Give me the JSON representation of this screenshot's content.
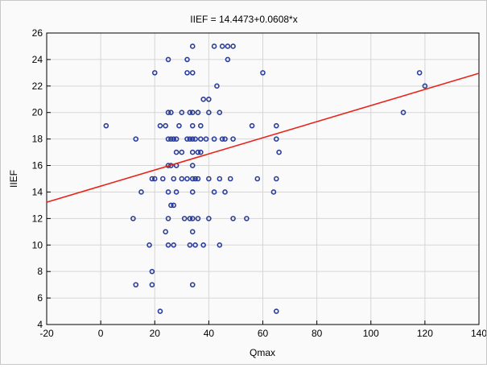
{
  "chart_data": {
    "type": "scatter",
    "title": "IIEF = 14.4473+0.0608*x",
    "xlabel": "Qmax",
    "ylabel": "IIEF",
    "xlim": [
      -20,
      140
    ],
    "ylim": [
      4,
      26
    ],
    "xticks": [
      -20,
      0,
      20,
      40,
      60,
      80,
      100,
      120,
      140
    ],
    "yticks": [
      4,
      6,
      8,
      10,
      12,
      14,
      16,
      18,
      20,
      22,
      24,
      26
    ],
    "grid": true,
    "colors": {
      "points": "#2b3d9a",
      "line": "#e8241a",
      "grid": "#d6d6d6"
    },
    "regression": {
      "intercept": 14.4473,
      "slope": 0.0608
    },
    "points": [
      [
        2,
        19
      ],
      [
        12,
        12
      ],
      [
        13,
        18
      ],
      [
        13,
        7
      ],
      [
        15,
        14
      ],
      [
        18,
        10
      ],
      [
        19,
        15
      ],
      [
        20,
        15
      ],
      [
        19,
        8
      ],
      [
        19,
        7
      ],
      [
        20,
        23
      ],
      [
        22,
        5
      ],
      [
        22,
        19
      ],
      [
        23,
        15
      ],
      [
        24,
        11
      ],
      [
        24,
        19
      ],
      [
        25,
        24
      ],
      [
        25,
        20
      ],
      [
        25,
        18
      ],
      [
        25,
        16
      ],
      [
        25,
        14
      ],
      [
        25,
        12
      ],
      [
        25,
        10
      ],
      [
        26,
        20
      ],
      [
        26,
        18
      ],
      [
        26,
        16
      ],
      [
        26,
        13
      ],
      [
        27,
        18
      ],
      [
        27,
        15
      ],
      [
        27,
        13
      ],
      [
        27,
        10
      ],
      [
        28,
        18
      ],
      [
        28,
        16
      ],
      [
        28,
        14
      ],
      [
        28,
        17
      ],
      [
        29,
        19
      ],
      [
        30,
        20
      ],
      [
        30,
        17
      ],
      [
        30,
        15
      ],
      [
        31,
        12
      ],
      [
        32,
        24
      ],
      [
        32,
        23
      ],
      [
        32,
        18
      ],
      [
        32,
        15
      ],
      [
        33,
        20
      ],
      [
        33,
        18
      ],
      [
        33,
        12
      ],
      [
        33,
        10
      ],
      [
        34,
        25
      ],
      [
        34,
        23
      ],
      [
        34,
        20
      ],
      [
        34,
        19
      ],
      [
        34,
        18
      ],
      [
        34,
        17
      ],
      [
        34,
        16
      ],
      [
        34,
        15
      ],
      [
        34,
        14
      ],
      [
        34,
        12
      ],
      [
        34,
        11
      ],
      [
        34,
        7
      ],
      [
        35,
        18
      ],
      [
        35,
        15
      ],
      [
        35,
        10
      ],
      [
        36,
        20
      ],
      [
        36,
        17
      ],
      [
        36,
        15
      ],
      [
        36,
        12
      ],
      [
        37,
        19
      ],
      [
        37,
        18
      ],
      [
        37,
        17
      ],
      [
        38,
        21
      ],
      [
        38,
        10
      ],
      [
        39,
        18
      ],
      [
        40,
        21
      ],
      [
        40,
        20
      ],
      [
        40,
        15
      ],
      [
        40,
        12
      ],
      [
        42,
        25
      ],
      [
        42,
        18
      ],
      [
        42,
        14
      ],
      [
        43,
        22
      ],
      [
        44,
        20
      ],
      [
        44,
        15
      ],
      [
        44,
        10
      ],
      [
        45,
        18
      ],
      [
        45,
        25
      ],
      [
        46,
        18
      ],
      [
        46,
        14
      ],
      [
        47,
        25
      ],
      [
        47,
        24
      ],
      [
        48,
        15
      ],
      [
        49,
        25
      ],
      [
        49,
        18
      ],
      [
        49,
        12
      ],
      [
        54,
        12
      ],
      [
        56,
        19
      ],
      [
        58,
        15
      ],
      [
        60,
        23
      ],
      [
        64,
        14
      ],
      [
        65,
        19
      ],
      [
        65,
        18
      ],
      [
        65,
        15
      ],
      [
        65,
        5
      ],
      [
        66,
        17
      ],
      [
        112,
        20
      ],
      [
        118,
        23
      ],
      [
        120,
        22
      ]
    ]
  }
}
